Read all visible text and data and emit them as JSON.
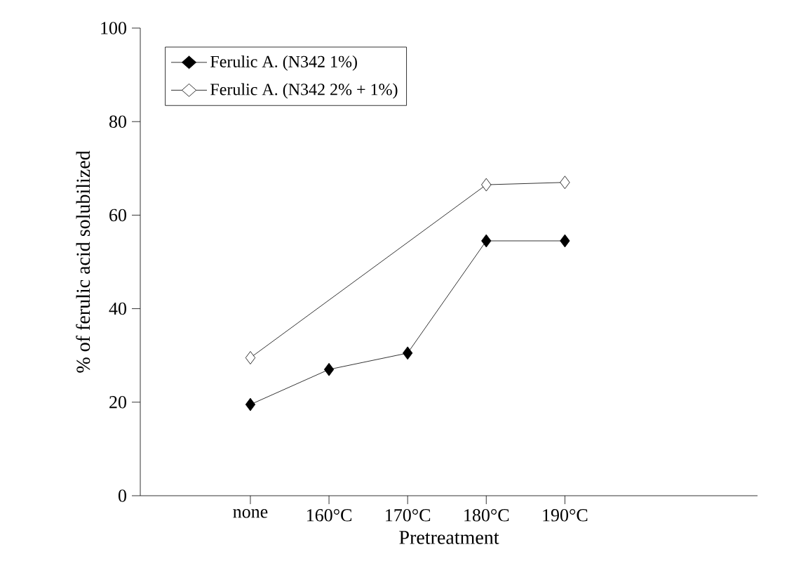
{
  "chart_data": {
    "type": "line",
    "xlabel": "Pretreatment",
    "ylabel": "% of ferulic acid solubilized",
    "categories": [
      "none",
      "160°C",
      "170°C",
      "180°C",
      "190°C"
    ],
    "series": [
      {
        "name": "Ferulic A. (N342 1%)",
        "color": "#000000",
        "values": [
          19.5,
          27,
          30.5,
          54.5,
          54.5
        ]
      },
      {
        "name": "Ferulic A. (N342 2% + 1%)",
        "color": "#000000",
        "values": [
          29.5,
          null,
          null,
          66.5,
          67
        ]
      }
    ],
    "ylim": [
      0,
      100
    ],
    "yticks": [
      0,
      20,
      40,
      60,
      80,
      100
    ],
    "grid": false,
    "legend": "top left",
    "marker": "diamond",
    "line_style": "solid"
  }
}
